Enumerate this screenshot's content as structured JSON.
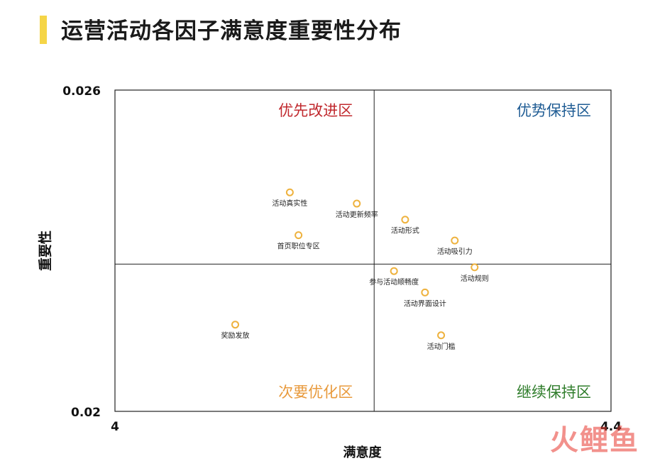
{
  "title": "运营活动各因子满意度重要性分布",
  "watermark": "火鲤鱼",
  "chart_data": {
    "type": "scatter",
    "title": "运营活动各因子满意度重要性分布",
    "xlabel": "满意度",
    "ylabel": "重要性",
    "xlim": [
      4,
      4.4
    ],
    "ylim": [
      0.02,
      0.026
    ],
    "x_ticks": [
      "4",
      "4.4"
    ],
    "y_ticks": [
      "0.026",
      "0.02"
    ],
    "grid": false,
    "divider_x": 4.209,
    "divider_y": 0.02275,
    "quadrants": [
      {
        "label": "优先改进区",
        "position": "top-left",
        "color": "#c0282d"
      },
      {
        "label": "优势保持区",
        "position": "top-right",
        "color": "#1f5c94"
      },
      {
        "label": "次要优化区",
        "position": "bottom-left",
        "color": "#e89a3c"
      },
      {
        "label": "继续保持区",
        "position": "bottom-right",
        "color": "#2f7d2b"
      }
    ],
    "point_color": "#eeb23e",
    "points": [
      {
        "label": "活动真实性",
        "x": 4.141,
        "y": 0.02409
      },
      {
        "label": "活动更新频率",
        "x": 4.195,
        "y": 0.02388
      },
      {
        "label": "活动形式",
        "x": 4.234,
        "y": 0.02358
      },
      {
        "label": "首页职位专区",
        "x": 4.148,
        "y": 0.02329
      },
      {
        "label": "活动吸引力",
        "x": 4.274,
        "y": 0.02319
      },
      {
        "label": "活动规则",
        "x": 4.29,
        "y": 0.02269
      },
      {
        "label": "参与活动顺畅度",
        "x": 4.225,
        "y": 0.02262
      },
      {
        "label": "活动界面设计",
        "x": 4.25,
        "y": 0.02222
      },
      {
        "label": "奖励发放",
        "x": 4.097,
        "y": 0.02162
      },
      {
        "label": "活动门槛",
        "x": 4.263,
        "y": 0.02142
      }
    ]
  }
}
